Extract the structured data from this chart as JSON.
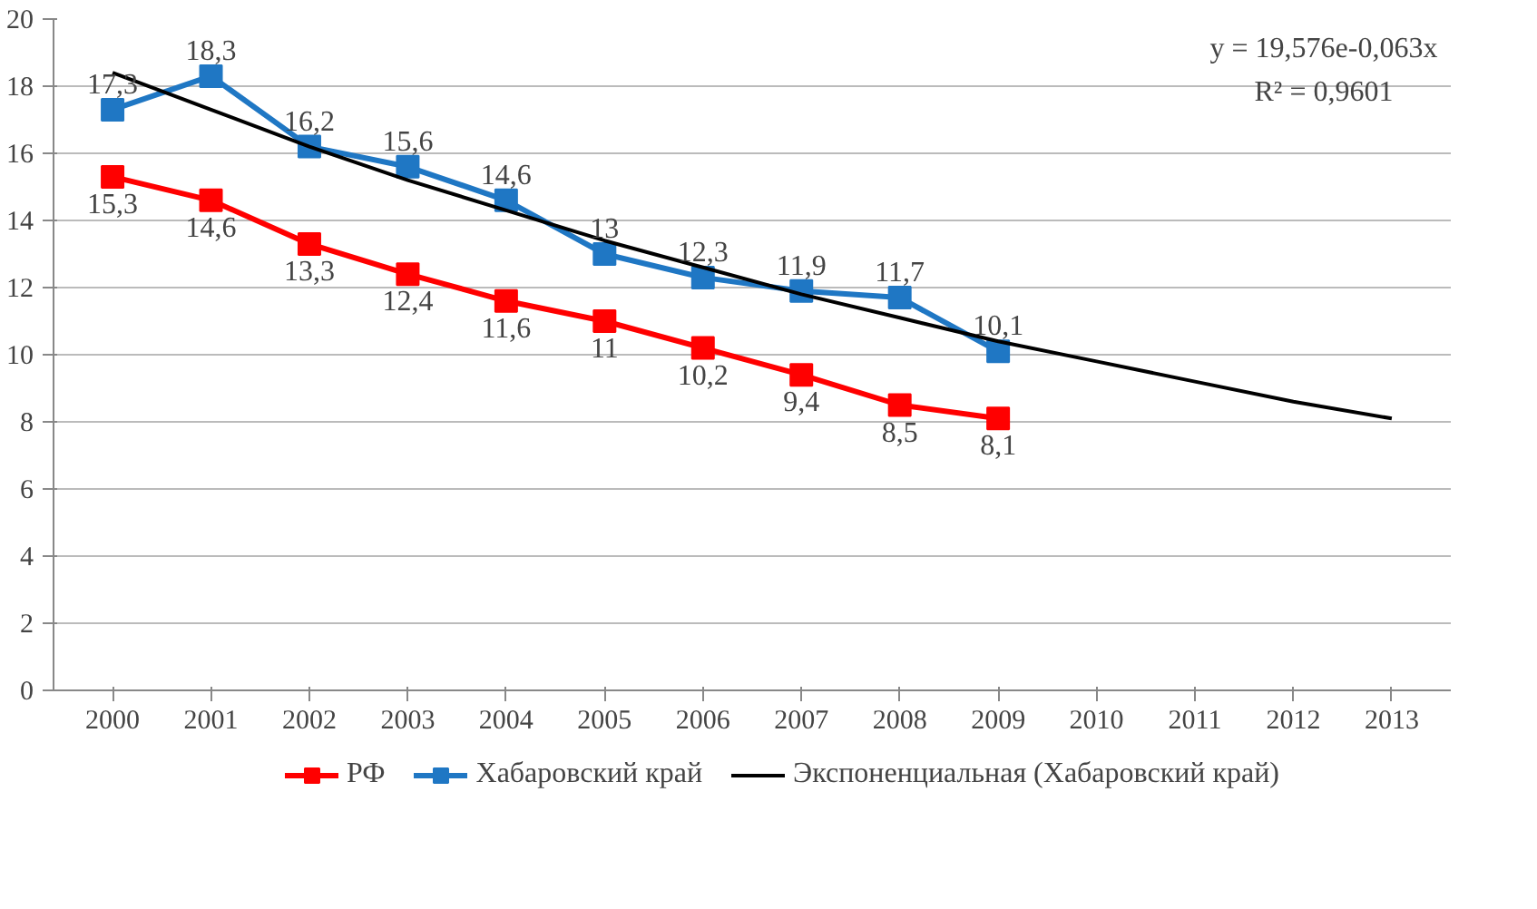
{
  "chart_data": {
    "type": "line",
    "categories": [
      "2000",
      "2001",
      "2002",
      "2003",
      "2004",
      "2005",
      "2006",
      "2007",
      "2008",
      "2009",
      "2010",
      "2011",
      "2012",
      "2013"
    ],
    "series": [
      {
        "name": "РФ",
        "color": "#ff0000",
        "marker": "square",
        "values": [
          15.3,
          14.6,
          13.3,
          12.4,
          11.6,
          11,
          10.2,
          9.4,
          8.5,
          8.1,
          null,
          null,
          null,
          null
        ],
        "value_labels": [
          "15,3",
          "14,6",
          "13,3",
          "12,4",
          "11,6",
          "11",
          "10,2",
          "9,4",
          "8,5",
          "8,1",
          null,
          null,
          null,
          null
        ]
      },
      {
        "name": "Хабаровский край",
        "color": "#1f77c4",
        "marker": "square",
        "values": [
          17.3,
          18.3,
          16.2,
          15.6,
          14.6,
          13,
          12.3,
          11.9,
          11.7,
          10.1,
          null,
          null,
          null,
          null
        ],
        "value_labels": [
          "17,3",
          "18,3",
          "16,2",
          "15,6",
          "14,6",
          "13",
          "12,3",
          "11,9",
          "11,7",
          "10,1",
          null,
          null,
          null,
          null
        ]
      },
      {
        "name": "Экспоненциальная (Хабаровский край)",
        "color": "#000000",
        "marker": "none",
        "values": [
          18.4,
          17.3,
          16.2,
          15.2,
          14.3,
          13.4,
          12.6,
          11.8,
          11.1,
          10.4,
          9.8,
          9.2,
          8.6,
          8.1
        ]
      }
    ],
    "ylim": [
      0,
      20
    ],
    "yticks": [
      0,
      2,
      4,
      6,
      8,
      10,
      12,
      14,
      16,
      18,
      20
    ],
    "grid": "y",
    "legend": "bottom",
    "annotations": [
      "y = 19,576e-0,063x",
      "R² = 0,9601"
    ]
  }
}
